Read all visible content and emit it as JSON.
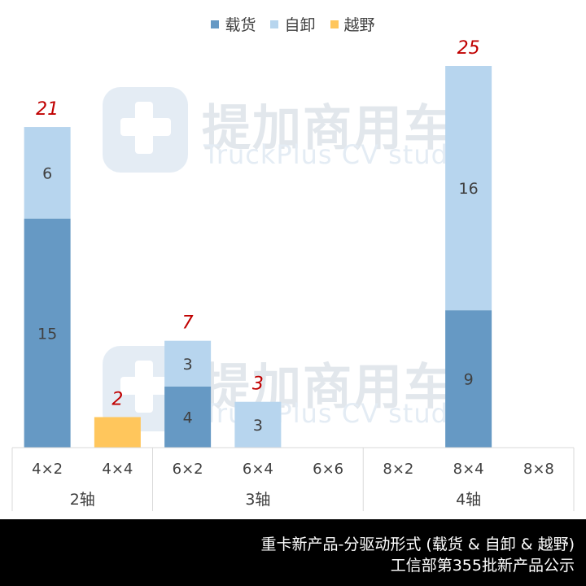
{
  "chart_data": {
    "type": "bar",
    "stacked": true,
    "groups": [
      {
        "label": "2轴",
        "categories": [
          "4×2",
          "4×4"
        ]
      },
      {
        "label": "3轴",
        "categories": [
          "6×2",
          "6×4",
          "6×6"
        ]
      },
      {
        "label": "4轴",
        "categories": [
          "8×2",
          "8×4",
          "8×8"
        ]
      }
    ],
    "categories": [
      "4×2",
      "4×4",
      "6×2",
      "6×4",
      "6×6",
      "8×2",
      "8×4",
      "8×8"
    ],
    "series": [
      {
        "name": "载货",
        "color": "#6699c4",
        "values": [
          15,
          0,
          4,
          0,
          0,
          0,
          9,
          0
        ]
      },
      {
        "name": "自卸",
        "color": "#b7d5ee",
        "values": [
          6,
          0,
          3,
          3,
          0,
          0,
          16,
          0
        ]
      },
      {
        "name": "越野",
        "color": "#ffc65c",
        "values": [
          0,
          2,
          0,
          0,
          0,
          0,
          0,
          0
        ]
      }
    ],
    "totals": [
      21,
      2,
      7,
      3,
      null,
      null,
      25,
      null
    ],
    "ylim": [
      0,
      25
    ],
    "grid": false,
    "legend": "top-center"
  },
  "watermark": {
    "cn": "提加商用车",
    "en": "TruckPlus CV studio"
  },
  "footer": {
    "line1": "重卡新产品-分驱动形式 (载货 & 自卸 & 越野)",
    "line2": "工信部第355批新产品公示"
  }
}
